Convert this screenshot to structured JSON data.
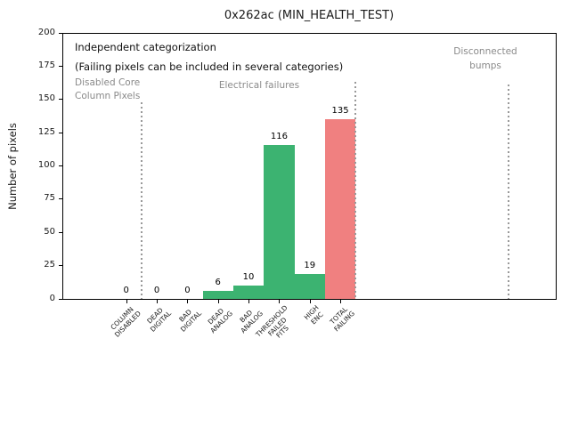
{
  "figure": {
    "title": "0x262ac (MIN_HEALTH_TEST)",
    "ylabel": "Number of pixels"
  },
  "annotations": {
    "heading": "Independent categorization",
    "subheading": "(Failing pixels can be included in several categories)",
    "regions": [
      {
        "name": "disabled-core-column-pixels",
        "label": "Disabled Core\nColumn Pixels"
      },
      {
        "name": "electrical-failures",
        "label": "Electrical failures"
      },
      {
        "name": "disconnected-bumps",
        "label": "Disconnected\nbumps"
      }
    ]
  },
  "chart_data": {
    "type": "bar",
    "title": "0x262ac (MIN_HEALTH_TEST)",
    "xlabel": "",
    "ylabel": "Number of pixels",
    "ylim": [
      0,
      200
    ],
    "yticks": [
      0,
      25,
      50,
      75,
      100,
      125,
      150,
      175,
      200
    ],
    "grid": false,
    "categories": [
      "COLUMN\nDISABLED",
      "DEAD\nDIGITAL",
      "BAD\nDIGITAL",
      "DEAD\nANALOG",
      "BAD\nANALOG",
      "THRESHOLD\nFAILED\nFITS",
      "HIGH\nENC",
      "TOTAL\nFAILING"
    ],
    "values": [
      0,
      0,
      0,
      6,
      10,
      116,
      19,
      135
    ],
    "bar_labels": [
      "0",
      "0",
      "0",
      "6",
      "10",
      "116",
      "19",
      "135"
    ],
    "bar_colors": [
      "#3cb371",
      "#3cb371",
      "#3cb371",
      "#3cb371",
      "#3cb371",
      "#3cb371",
      "#3cb371",
      "#f08080"
    ],
    "separators_x_categories": [
      0.5,
      7.5,
      12.5
    ],
    "region_labels": [
      "Disabled Core\nColumn Pixels",
      "Electrical failures",
      "Disconnected\nbumps"
    ]
  },
  "colors": {
    "bar_green": "#3cb371",
    "bar_red": "#f08080",
    "muted_text": "#8a8a8a",
    "separator": "#999999",
    "axis": "#000000",
    "background": "#ffffff"
  }
}
